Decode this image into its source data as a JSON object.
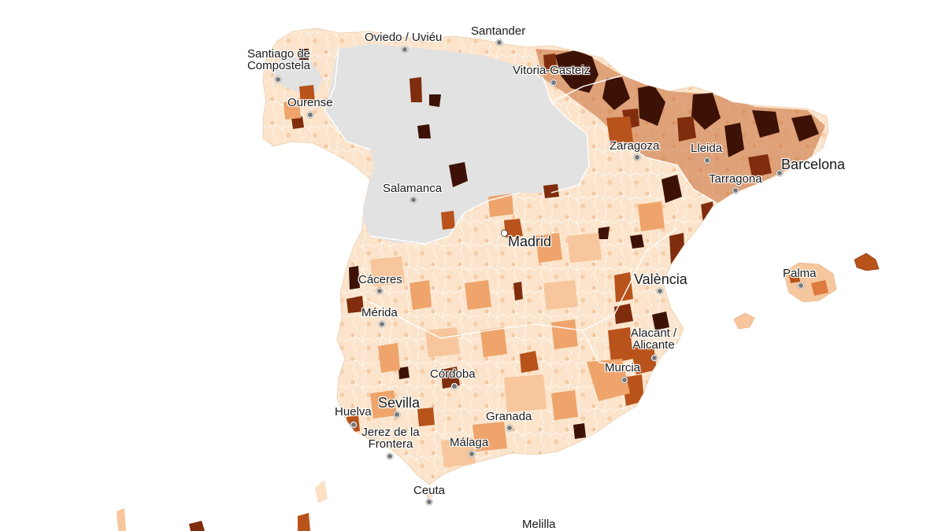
{
  "map": {
    "colors": {
      "background": "#ffffff",
      "no_data": "#e3e3e3",
      "scale": [
        "#fdf1e4",
        "#fbe0c4",
        "#f7c69c",
        "#eea46b",
        "#dd7a3d",
        "#b8531c",
        "#7f2d0d",
        "#3d1206"
      ],
      "borders": "#ffffff"
    },
    "cities": {
      "santiago": {
        "lines": [
          "Santiago de",
          "Compostela"
        ]
      },
      "oviedo": {
        "lines": [
          "Oviedo / Uviéu"
        ]
      },
      "santander": {
        "lines": [
          "Santander"
        ]
      },
      "vitoria": {
        "lines": [
          "Vitoria-Gasteiz"
        ]
      },
      "ourense": {
        "lines": [
          "Ourense"
        ]
      },
      "zaragoza": {
        "lines": [
          "Zaragoza"
        ]
      },
      "lleida": {
        "lines": [
          "Lleida"
        ]
      },
      "barcelona": {
        "lines": [
          "Barcelona"
        ]
      },
      "tarragona": {
        "lines": [
          "Tarragona"
        ]
      },
      "salamanca": {
        "lines": [
          "Salamanca"
        ]
      },
      "madrid": {
        "lines": [
          "Madrid"
        ]
      },
      "caceres": {
        "lines": [
          "Cáceres"
        ]
      },
      "valencia": {
        "lines": [
          "València"
        ]
      },
      "palma": {
        "lines": [
          "Palma"
        ]
      },
      "merida": {
        "lines": [
          "Mérida"
        ]
      },
      "alicante": {
        "lines": [
          "Alacant /",
          "Alicante"
        ]
      },
      "murcia": {
        "lines": [
          "Murcia"
        ]
      },
      "cordoba": {
        "lines": [
          "Córdoba"
        ]
      },
      "sevilla": {
        "lines": [
          "Sevilla"
        ]
      },
      "huelva": {
        "lines": [
          "Huelva"
        ]
      },
      "granada": {
        "lines": [
          "Granada"
        ]
      },
      "jerez": {
        "lines": [
          "Jerez de la",
          "Frontera"
        ]
      },
      "malaga": {
        "lines": [
          "Málaga"
        ]
      },
      "ceuta": {
        "lines": [
          "Ceuta"
        ]
      },
      "melilla": {
        "lines": [
          "Melilla"
        ]
      }
    }
  }
}
